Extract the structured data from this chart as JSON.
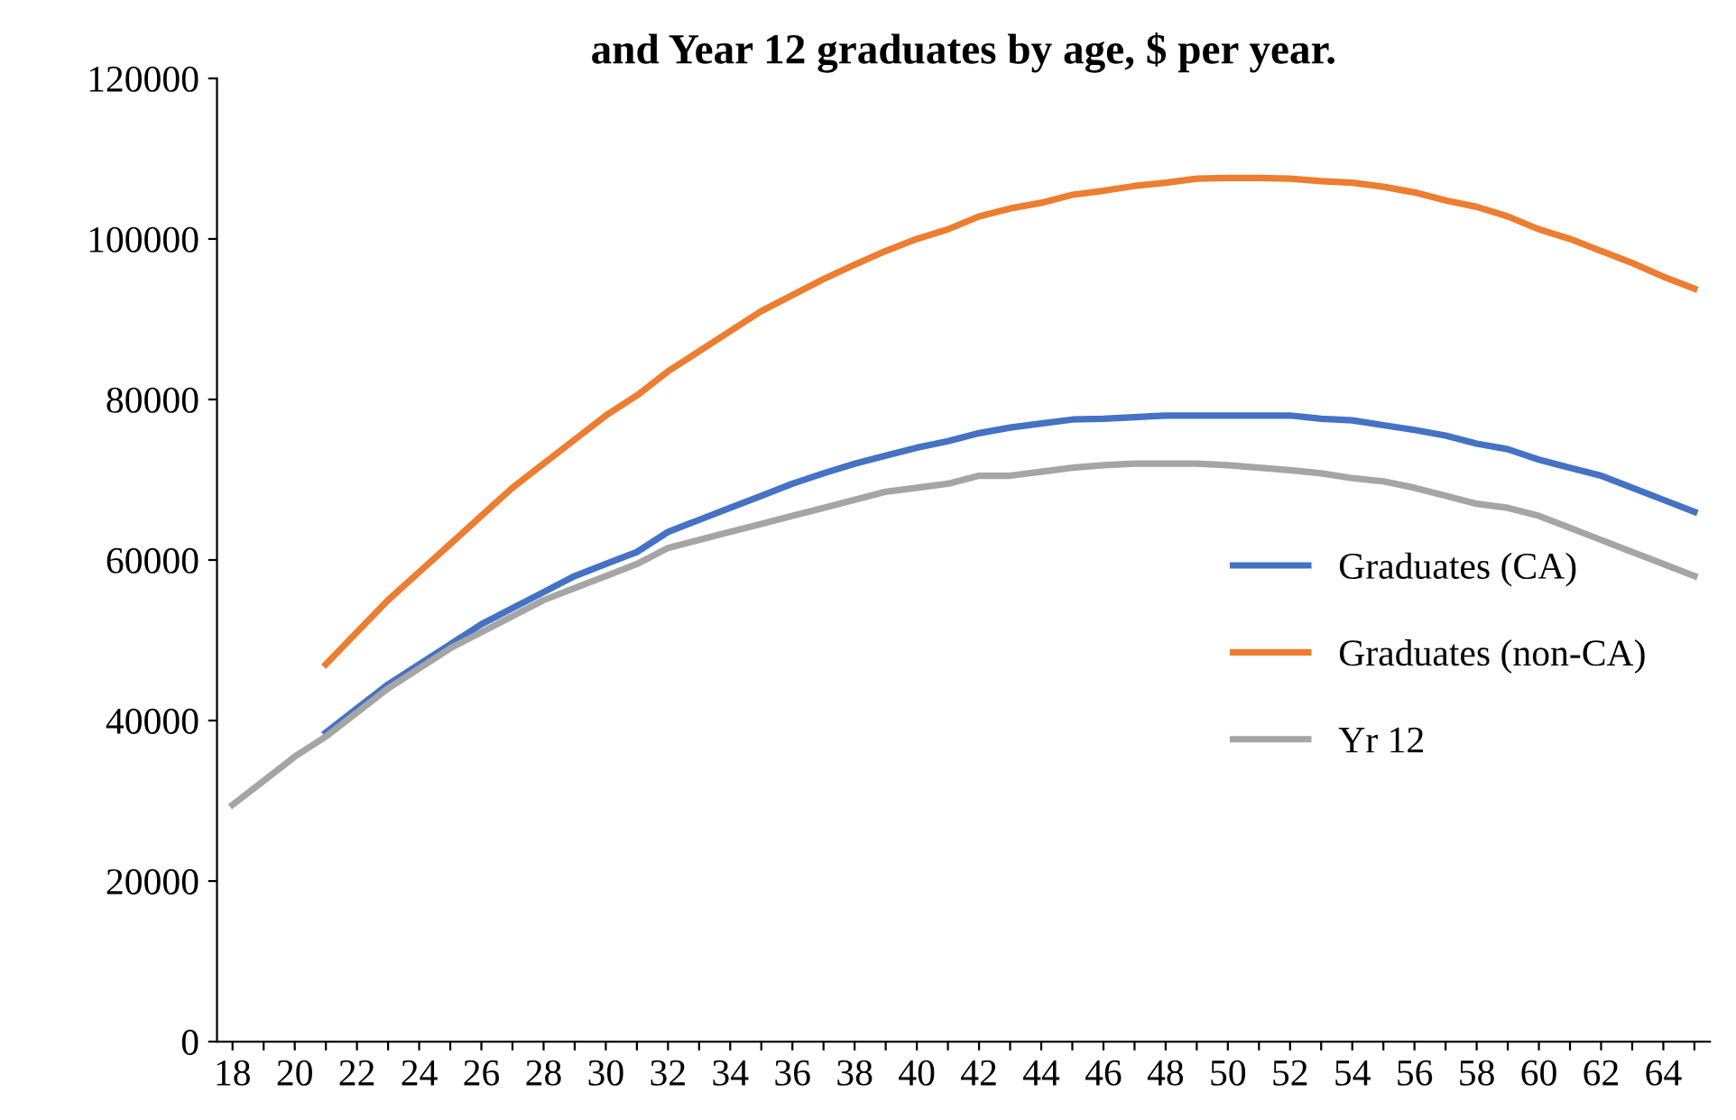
{
  "chart_data": {
    "type": "line",
    "title": "and Year 12 graduates by age, $ per year.",
    "x": [
      18,
      19,
      20,
      21,
      22,
      23,
      24,
      25,
      26,
      27,
      28,
      29,
      30,
      31,
      32,
      33,
      34,
      35,
      36,
      37,
      38,
      39,
      40,
      41,
      42,
      43,
      44,
      45,
      46,
      47,
      48,
      49,
      50,
      51,
      52,
      53,
      54,
      55,
      56,
      57,
      58,
      59,
      60,
      61,
      62,
      63,
      64,
      65
    ],
    "series": [
      {
        "name": "Graduates (CA)",
        "color": "#4472c4",
        "values": [
          null,
          null,
          null,
          38500,
          41500,
          44500,
          47000,
          49500,
          52000,
          54000,
          56000,
          58000,
          59500,
          61000,
          63500,
          65000,
          66500,
          68000,
          69500,
          70800,
          72000,
          73000,
          74000,
          74800,
          75800,
          76500,
          77000,
          77500,
          77600,
          77800,
          78000,
          78000,
          78000,
          78000,
          78000,
          77600,
          77400,
          76800,
          76200,
          75500,
          74500,
          73800,
          72500,
          71500,
          70500,
          69000,
          67500,
          66000
        ]
      },
      {
        "name": "Graduates (non-CA)",
        "color": "#ed7d31",
        "values": [
          null,
          null,
          null,
          47000,
          51000,
          55000,
          58500,
          62000,
          65500,
          69000,
          72000,
          75000,
          78000,
          80500,
          83500,
          86000,
          88500,
          91000,
          93000,
          95000,
          96800,
          98500,
          100000,
          101200,
          102800,
          103800,
          104500,
          105500,
          106000,
          106600,
          107000,
          107500,
          107600,
          107600,
          107500,
          107200,
          107000,
          106500,
          105800,
          104800,
          104000,
          102800,
          101200,
          100000,
          98500,
          97000,
          95300,
          93800
        ]
      },
      {
        "name": "Yr 12",
        "color": "#a5a5a5",
        "values": [
          29500,
          32500,
          35500,
          38000,
          41000,
          44000,
          46500,
          49000,
          51000,
          53000,
          55000,
          56500,
          58000,
          59500,
          61500,
          62500,
          63500,
          64500,
          65500,
          66500,
          67500,
          68500,
          69000,
          69500,
          70500,
          70500,
          71000,
          71500,
          71800,
          72000,
          72000,
          72000,
          71800,
          71500,
          71200,
          70800,
          70200,
          69800,
          69000,
          68000,
          67000,
          66500,
          65500,
          64000,
          62500,
          61000,
          59500,
          58000
        ]
      }
    ],
    "xlim": [
      17.5,
      65.5
    ],
    "xticks": [
      18,
      {
        "value": 19,
        "label": null
      },
      20,
      {
        "value": 21,
        "label": null
      },
      22,
      {
        "value": 23,
        "label": null
      },
      24,
      {
        "value": 25,
        "label": null
      },
      26,
      {
        "value": 27,
        "label": null
      },
      28,
      {
        "value": 29,
        "label": null
      },
      30,
      {
        "value": 31,
        "label": null
      },
      32,
      {
        "value": 33,
        "label": null
      },
      34,
      {
        "value": 35,
        "label": null
      },
      36,
      {
        "value": 37,
        "label": null
      },
      38,
      {
        "value": 39,
        "label": null
      },
      40,
      {
        "value": 41,
        "label": null
      },
      42,
      {
        "value": 43,
        "label": null
      },
      44,
      {
        "value": 45,
        "label": null
      },
      46,
      {
        "value": 47,
        "label": null
      },
      48,
      {
        "value": 49,
        "label": null
      },
      50,
      {
        "value": 51,
        "label": null
      },
      52,
      {
        "value": 53,
        "label": null
      },
      54,
      {
        "value": 55,
        "label": null
      },
      56,
      {
        "value": 57,
        "label": null
      },
      58,
      {
        "value": 59,
        "label": null
      },
      60,
      {
        "value": 61,
        "label": null
      },
      62,
      {
        "value": 63,
        "label": null
      },
      64,
      {
        "value": 65,
        "label": null
      }
    ],
    "ylim": [
      0,
      120000
    ],
    "yticks": [
      0,
      20000,
      40000,
      60000,
      80000,
      100000,
      120000
    ],
    "grid": false,
    "legend": "center right",
    "marker": "none",
    "line_style": "solid"
  }
}
